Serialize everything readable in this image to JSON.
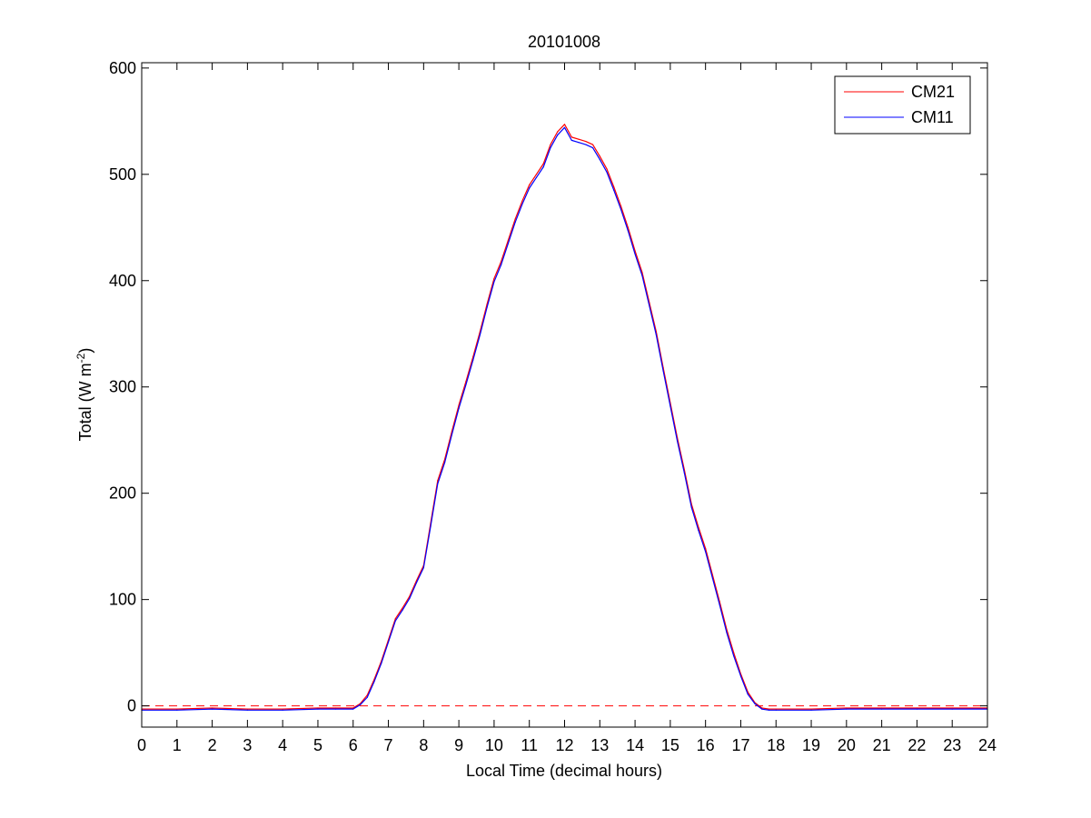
{
  "chart_data": {
    "type": "line",
    "title": "20101008",
    "xlabel": "Local Time (decimal hours)",
    "ylabel": "Total (W m",
    "ylabel_sup": "-2",
    "ylabel_end": ")",
    "xlim": [
      0,
      24
    ],
    "ylim": [
      -20,
      605
    ],
    "xticks": [
      0,
      1,
      2,
      3,
      4,
      5,
      6,
      7,
      8,
      9,
      10,
      11,
      12,
      13,
      14,
      15,
      16,
      17,
      18,
      19,
      20,
      21,
      22,
      23,
      24
    ],
    "yticks": [
      0,
      100,
      200,
      300,
      400,
      500,
      600
    ],
    "grid": false,
    "legend": "top-right",
    "reference_line": {
      "y": 0,
      "style": "dashed",
      "color": "#ff0000"
    },
    "series": [
      {
        "name": "CM21",
        "color": "#ff0000",
        "x": [
          0,
          1,
          2,
          3,
          4,
          5,
          5.5,
          6,
          6.2,
          6.4,
          6.6,
          6.8,
          7,
          7.2,
          7.4,
          7.6,
          7.8,
          8,
          8.2,
          8.4,
          8.6,
          8.8,
          9,
          9.2,
          9.4,
          9.6,
          9.8,
          10,
          10.2,
          10.4,
          10.6,
          10.8,
          11,
          11.2,
          11.4,
          11.6,
          11.8,
          12,
          12.2,
          12.4,
          12.6,
          12.8,
          13,
          13.2,
          13.4,
          13.6,
          13.8,
          14,
          14.2,
          14.4,
          14.6,
          14.8,
          15,
          15.2,
          15.4,
          15.6,
          15.8,
          16,
          16.2,
          16.4,
          16.6,
          16.8,
          17,
          17.2,
          17.4,
          17.6,
          17.8,
          18,
          19,
          20,
          21,
          22,
          23,
          24
        ],
        "y": [
          -3,
          -3,
          -2,
          -3,
          -3,
          -2,
          -2,
          -2,
          2,
          10,
          25,
          42,
          62,
          82,
          92,
          103,
          118,
          132,
          172,
          212,
          232,
          258,
          283,
          305,
          328,
          352,
          378,
          402,
          418,
          438,
          458,
          475,
          490,
          500,
          510,
          528,
          540,
          547,
          535,
          533,
          531,
          528,
          517,
          505,
          488,
          470,
          450,
          428,
          408,
          380,
          352,
          318,
          285,
          252,
          222,
          190,
          168,
          148,
          123,
          98,
          72,
          50,
          30,
          13,
          3,
          -2,
          -3,
          -3,
          -3,
          -2,
          -2,
          -2,
          -2,
          -2
        ],
        "values": [
          -3,
          -3,
          -2,
          -3,
          -3,
          -2,
          -2,
          -2,
          2,
          10,
          25,
          42,
          62,
          82,
          92,
          103,
          118,
          132,
          172,
          212,
          232,
          258,
          283,
          305,
          328,
          352,
          378,
          402,
          418,
          438,
          458,
          475,
          490,
          500,
          510,
          528,
          540,
          547,
          535,
          533,
          531,
          528,
          517,
          505,
          488,
          470,
          450,
          428,
          408,
          380,
          352,
          318,
          285,
          252,
          222,
          190,
          168,
          148,
          123,
          98,
          72,
          50,
          30,
          13,
          3,
          -2,
          -3,
          -3,
          -3,
          -2,
          -2,
          -2,
          -2,
          -2
        ]
      },
      {
        "name": "CM11",
        "color": "#0000ff",
        "x": [
          0,
          1,
          2,
          3,
          4,
          5,
          5.5,
          6,
          6.2,
          6.4,
          6.6,
          6.8,
          7,
          7.2,
          7.4,
          7.6,
          7.8,
          8,
          8.2,
          8.4,
          8.6,
          8.8,
          9,
          9.2,
          9.4,
          9.6,
          9.8,
          10,
          10.2,
          10.4,
          10.6,
          10.8,
          11,
          11.2,
          11.4,
          11.6,
          11.8,
          12,
          12.2,
          12.4,
          12.6,
          12.8,
          13,
          13.2,
          13.4,
          13.6,
          13.8,
          14,
          14.2,
          14.4,
          14.6,
          14.8,
          15,
          15.2,
          15.4,
          15.6,
          15.8,
          16,
          16.2,
          16.4,
          16.6,
          16.8,
          17,
          17.2,
          17.4,
          17.6,
          17.8,
          18,
          19,
          20,
          21,
          22,
          23,
          24
        ],
        "y": [
          -4,
          -4,
          -3,
          -4,
          -4,
          -3,
          -3,
          -3,
          1,
          8,
          23,
          40,
          60,
          80,
          90,
          101,
          116,
          130,
          169,
          209,
          229,
          255,
          280,
          302,
          325,
          349,
          375,
          399,
          415,
          435,
          455,
          472,
          487,
          497,
          507,
          525,
          537,
          544,
          532,
          530,
          528,
          525,
          514,
          502,
          485,
          467,
          447,
          425,
          405,
          377,
          349,
          315,
          282,
          249,
          219,
          187,
          165,
          145,
          120,
          95,
          69,
          47,
          28,
          11,
          2,
          -3,
          -4,
          -4,
          -4,
          -3,
          -3,
          -3,
          -3,
          -3
        ],
        "values": [
          -4,
          -4,
          -3,
          -4,
          -4,
          -3,
          -3,
          -3,
          1,
          8,
          23,
          40,
          60,
          80,
          90,
          101,
          116,
          130,
          169,
          209,
          229,
          255,
          280,
          302,
          325,
          349,
          375,
          399,
          415,
          435,
          455,
          472,
          487,
          497,
          507,
          525,
          537,
          544,
          532,
          530,
          528,
          525,
          514,
          502,
          485,
          467,
          447,
          425,
          405,
          377,
          349,
          315,
          282,
          249,
          219,
          187,
          165,
          145,
          120,
          95,
          69,
          47,
          28,
          11,
          2,
          -3,
          -4,
          -4,
          -4,
          -3,
          -3,
          -3,
          -3,
          -3
        ]
      }
    ]
  }
}
